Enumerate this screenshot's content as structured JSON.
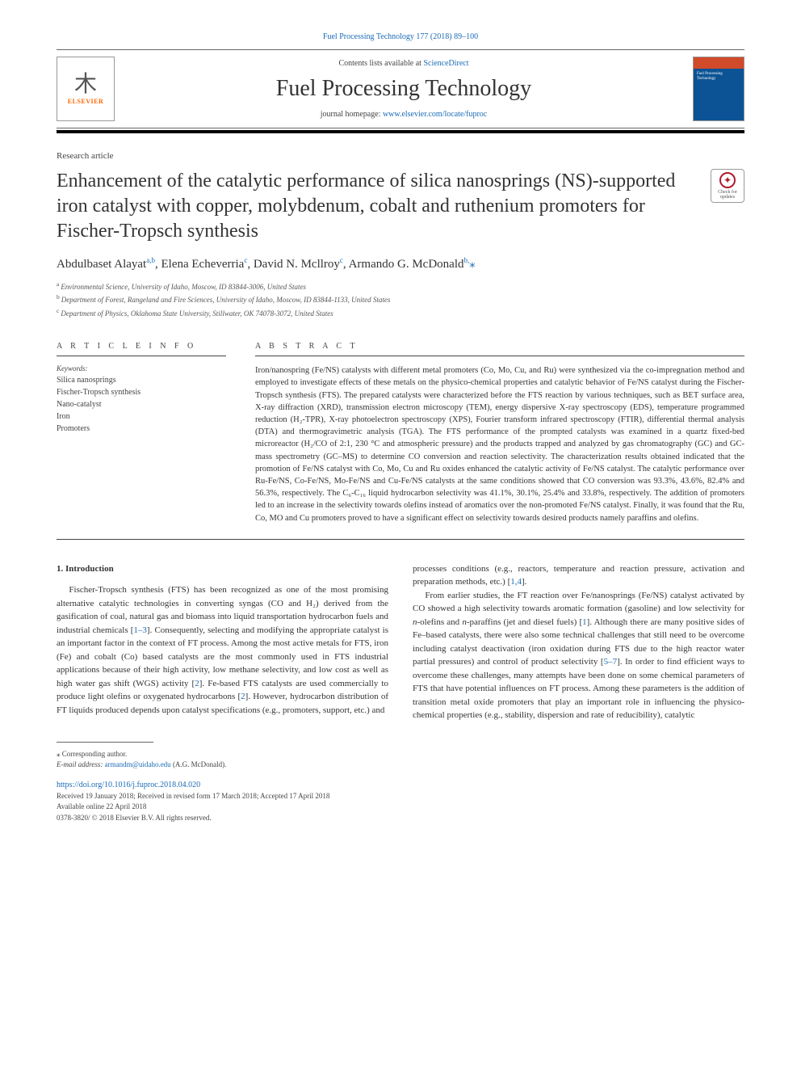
{
  "top_link": "Fuel Processing Technology 177 (2018) 89–100",
  "header": {
    "contents_prefix": "Contents lists available at ",
    "contents_link": "ScienceDirect",
    "journal_title": "Fuel Processing Technology",
    "homepage_prefix": "journal homepage: ",
    "homepage_link": "www.elsevier.com/locate/fuproc",
    "elsevier_brand": "ELSEVIER"
  },
  "article_type": "Research article",
  "title": "Enhancement of the catalytic performance of silica nanosprings (NS)-supported iron catalyst with copper, molybdenum, cobalt and ruthenium promoters for Fischer-Tropsch synthesis",
  "updates_badge": "Check for updates",
  "authors_html": "Abdulbaset Alayat<sup>a,b</sup>, Elena Echeverria<sup>c</sup>, David N. Mcllroy<sup>c</sup>, Armando G. McDonald<sup>b,</sup><span class=\"star\">⁎</span>",
  "affiliations": [
    {
      "sup": "a",
      "text": "Environmental Science, University of Idaho, Moscow, ID 83844-3006, United States"
    },
    {
      "sup": "b",
      "text": "Department of Forest, Rangeland and Fire Sciences, University of Idaho, Moscow, ID 83844-1133, United States"
    },
    {
      "sup": "c",
      "text": "Department of Physics, Oklahoma State University, Stillwater, OK 74078-3072, United States"
    }
  ],
  "info": {
    "label": "A R T I C L E  I N F O",
    "keywords_heading": "Keywords:",
    "keywords": [
      "Silica nanosprings",
      "Fischer-Tropsch synthesis",
      "Nano-catalyst",
      "Iron",
      "Promoters"
    ]
  },
  "abstract": {
    "label": "A B S T R A C T",
    "text": "Iron/nanospring (Fe/NS) catalysts with different metal promoters (Co, Mo, Cu, and Ru) were synthesized via the co-impregnation method and employed to investigate effects of these metals on the physico-chemical properties and catalytic behavior of Fe/NS catalyst during the Fischer-Tropsch synthesis (FTS). The prepared catalysts were characterized before the FTS reaction by various techniques, such as BET surface area, X-ray diffraction (XRD), transmission electron microscopy (TEM), energy dispersive X-ray spectroscopy (EDS), temperature programmed reduction (H₂-TPR), X-ray photoelectron spectroscopy (XPS), Fourier transform infrared spectroscopy (FTIR), differential thermal analysis (DTA) and thermogravimetric analysis (TGA). The FTS performance of the prompted catalysts was examined in a quartz fixed-bed microreactor (H₂/CO of 2:1, 230 °C and atmospheric pressure) and the products trapped and analyzed by gas chromatography (GC) and GC-mass spectrometry (GC–MS) to determine CO conversion and reaction selectivity. The characterization results obtained indicated that the promotion of Fe/NS catalyst with Co, Mo, Cu and Ru oxides enhanced the catalytic activity of Fe/NS catalyst. The catalytic performance over Ru-Fe/NS, Co-Fe/NS, Mo-Fe/NS and Cu-Fe/NS catalysts at the same conditions showed that CO conversion was 93.3%, 43.6%, 82.4% and 56.3%, respectively. The C₆-C₁₆ liquid hydrocarbon selectivity was 41.1%, 30.1%, 25.4% and 33.8%, respectively. The addition of promoters led to an increase in the selectivity towards olefins instead of aromatics over the non-promoted Fe/NS catalyst. Finally, it was found that the Ru, Co, MO and Cu promoters proved to have a significant effect on selectivity towards desired products namely paraffins and olefins."
  },
  "body": {
    "heading": "1. Introduction",
    "p1": "Fischer-Tropsch synthesis (FTS) has been recognized as one of the most promising alternative catalytic technologies in converting syngas (CO and H₂) derived from the gasification of coal, natural gas and biomass into liquid transportation hydrocarbon fuels and industrial chemicals [",
    "r1": "1–3",
    "p1b": "]. Consequently, selecting and modifying the appropriate catalyst is an important factor in the context of FT process. Among the most active metals for FTS, iron (Fe) and cobalt (Co) based catalysts are the most commonly used in FTS industrial applications because of their high activity, low methane selectivity, and low cost as well as high water gas shift (WGS) activity [",
    "r2": "2",
    "p1c": "]. Fe-based FTS catalysts are used commercially to produce light olefins or oxygenated hydrocarbons [",
    "r3": "2",
    "p1d": "]. However, hydrocarbon distribution of FT liquids produced depends upon catalyst specifications (e.g., promoters, support, etc.) and",
    "p2a": "processes conditions (e.g., reactors, temperature and reaction pressure, activation and preparation methods, etc.) [",
    "r4": "1,4",
    "p2b": "].",
    "p3a": "From earlier studies, the FT reaction over Fe/nanosprings (Fe/NS) catalyst activated by CO showed a high selectivity towards aromatic formation (gasoline) and low selectivity for ",
    "p3i1": "n",
    "p3b": "-olefins and ",
    "p3i2": "n",
    "p3c": "-paraffins (jet and diesel fuels) [",
    "r5": "1",
    "p3d": "]. Although there are many positive sides of Fe–based catalysts, there were also some technical challenges that still need to be overcome including catalyst deactivation (iron oxidation during FTS due to the high reactor water partial pressures) and control of product selectivity [",
    "r6": "5–7",
    "p3e": "]. In order to find efficient ways to overcome these challenges, many attempts have been done on some chemical parameters of FTS that have potential influences on FT process. Among these parameters is the addition of transition metal oxide promoters that play an important role in influencing the physico-chemical properties (e.g., stability, dispersion and rate of reducibility), catalytic"
  },
  "footer": {
    "corr": "⁎ Corresponding author.",
    "email_label": "E-mail address: ",
    "email": "armandm@uidaho.edu",
    "email_name": " (A.G. McDonald).",
    "doi": "https://doi.org/10.1016/j.fuproc.2018.04.020",
    "received": "Received 19 January 2018; Received in revised form 17 March 2018; Accepted 17 April 2018",
    "online": "Available online 22 April 2018",
    "copyright": "0378-3820/ © 2018 Elsevier B.V. All rights reserved."
  }
}
